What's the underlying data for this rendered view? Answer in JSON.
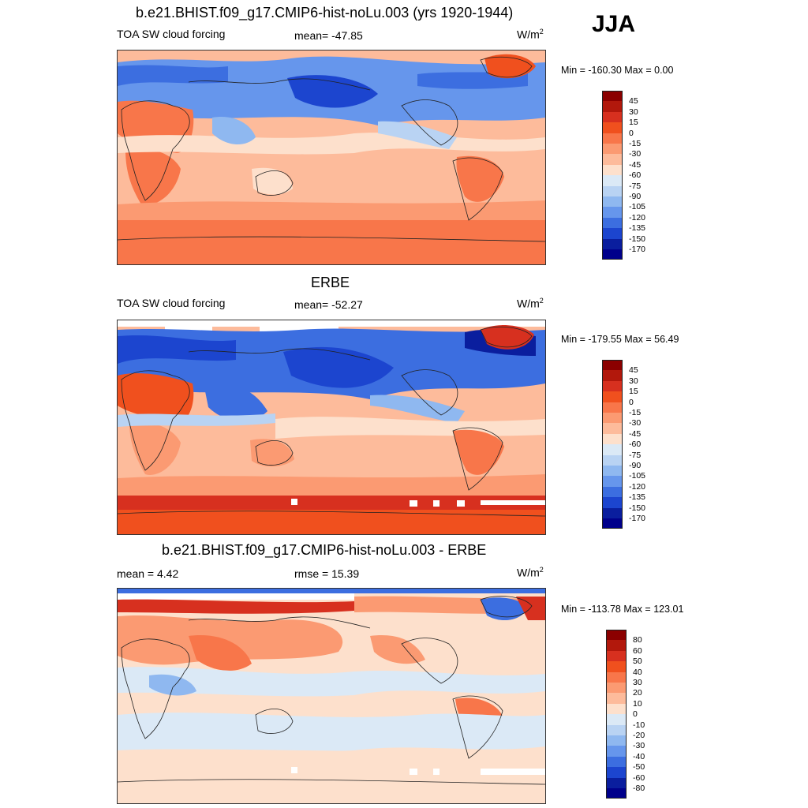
{
  "season": "JJA",
  "panels": [
    {
      "title": "b.e21.BHIST.f09_g17.CMIP6-hist-noLu.003 (yrs 1920-1944)",
      "left_label": "TOA SW cloud forcing",
      "center_label": "mean= -47.85",
      "units": "W/m",
      "units_sup": "2",
      "minmax": "Min = -160.30 Max =   0.00",
      "colorbar_ticks": [
        "45",
        "30",
        "15",
        "0",
        "-15",
        "-30",
        "-45",
        "-60",
        "-75",
        "-90",
        "-105",
        "-120",
        "-135",
        "-150",
        "-170"
      ],
      "colorbar_colors": [
        "#8b0000",
        "#b2180c",
        "#d7301f",
        "#f0501e",
        "#f8764a",
        "#fb9a72",
        "#fdbb9b",
        "#fde0cc",
        "#dbe9f6",
        "#b9d3f3",
        "#8fb8f0",
        "#6696ec",
        "#3c6ee0",
        "#1c45cf",
        "#0a1e9e",
        "#00008b"
      ]
    },
    {
      "title": "ERBE",
      "left_label": "TOA SW cloud forcing",
      "center_label": "mean= -52.27",
      "units": "W/m",
      "units_sup": "2",
      "minmax": "Min = -179.55 Max =  56.49",
      "colorbar_ticks": [
        "45",
        "30",
        "15",
        "0",
        "-15",
        "-30",
        "-45",
        "-60",
        "-75",
        "-90",
        "-105",
        "-120",
        "-135",
        "-150",
        "-170"
      ],
      "colorbar_colors": [
        "#8b0000",
        "#b2180c",
        "#d7301f",
        "#f0501e",
        "#f8764a",
        "#fb9a72",
        "#fdbb9b",
        "#fde0cc",
        "#dbe9f6",
        "#b9d3f3",
        "#8fb8f0",
        "#6696ec",
        "#3c6ee0",
        "#1c45cf",
        "#0a1e9e",
        "#00008b"
      ]
    },
    {
      "title": "b.e21.BHIST.f09_g17.CMIP6-hist-noLu.003 - ERBE",
      "left_label": "mean =   4.42",
      "center_label": "rmse =  15.39",
      "units": "W/m",
      "units_sup": "2",
      "minmax": "Min = -113.78 Max = 123.01",
      "colorbar_ticks": [
        "80",
        "60",
        "50",
        "40",
        "30",
        "20",
        "10",
        "0",
        "-10",
        "-20",
        "-30",
        "-40",
        "-50",
        "-60",
        "-80"
      ],
      "colorbar_colors": [
        "#8b0000",
        "#b2180c",
        "#d7301f",
        "#f0501e",
        "#f8764a",
        "#fb9a72",
        "#fdbb9b",
        "#fde0cc",
        "#dbe9f6",
        "#b9d3f3",
        "#8fb8f0",
        "#6696ec",
        "#3c6ee0",
        "#1c45cf",
        "#0a1e9e",
        "#00008b"
      ]
    }
  ]
}
